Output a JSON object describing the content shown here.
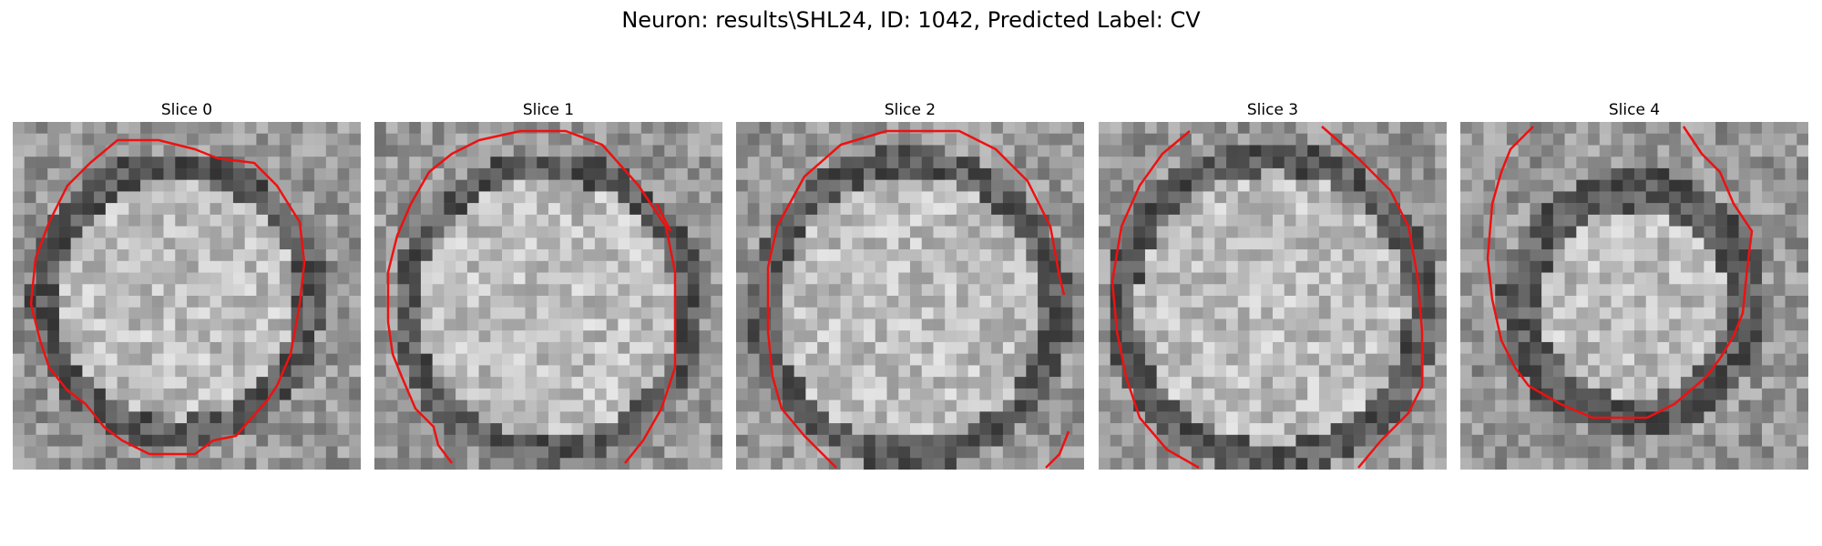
{
  "figure": {
    "title": "Neuron: results\\SHL24, ID: 1042, Predicted Label: CV"
  },
  "panels": [
    {
      "title": "Slice 0"
    },
    {
      "title": "Slice 1"
    },
    {
      "title": "Slice 2"
    },
    {
      "title": "Slice 3"
    },
    {
      "title": "Slice 4"
    }
  ],
  "style": {
    "contour_color": "#ee1111",
    "colormap": "grayscale"
  }
}
